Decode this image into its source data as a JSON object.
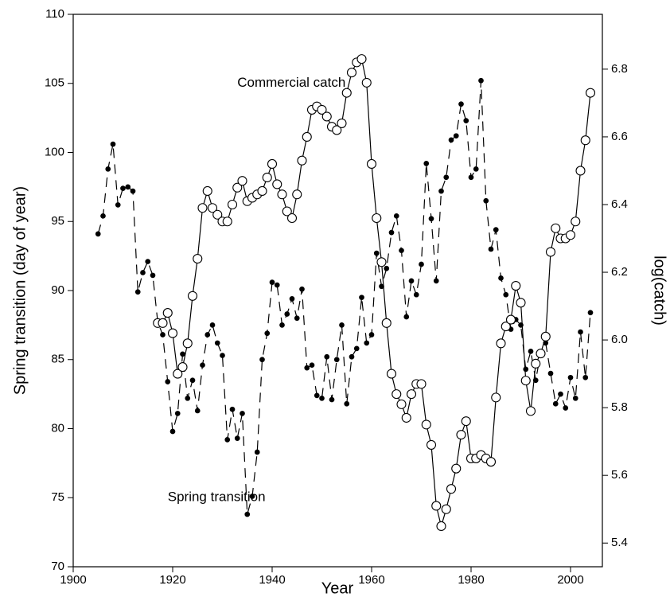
{
  "chart_data": {
    "type": "line",
    "xlabel": "Year",
    "ylabel": "Spring transition (day of year)",
    "y2label": "log(catch)",
    "xlim": [
      1900,
      2006.4
    ],
    "xticks": [
      1900,
      1920,
      1940,
      1960,
      1980,
      2000
    ],
    "ylim": [
      70,
      110
    ],
    "yticks": [
      70,
      75,
      80,
      85,
      90,
      95,
      100,
      105,
      110
    ],
    "y2lim": [
      5.33,
      6.962
    ],
    "y2ticks": [
      5.4,
      5.6,
      5.8,
      {
        "value": 6,
        "label": "6.0"
      },
      6.2,
      6.4,
      6.6,
      6.8
    ],
    "annotations": [
      {
        "text": "Commercial catch",
        "x": 1933,
        "y": 105
      },
      {
        "text": "Spring transition",
        "x": 1919,
        "y": 75
      }
    ],
    "series": [
      {
        "name": "Spring transition",
        "color": "#000",
        "style": "dashed",
        "marker": "dot",
        "x": [
          1905,
          1906,
          1907,
          1908,
          1909,
          1910,
          1911,
          1912,
          1913,
          1914,
          1915,
          1916,
          1917,
          1918,
          1919,
          1920,
          1921,
          1922,
          1923,
          1924,
          1925,
          1926,
          1927,
          1928,
          1929,
          1930,
          1931,
          1932,
          1933,
          1934,
          1935,
          1936,
          1937,
          1938,
          1939,
          1940,
          1941,
          1942,
          1943,
          1944,
          1945,
          1946,
          1947,
          1948,
          1949,
          1950,
          1951,
          1952,
          1953,
          1954,
          1955,
          1956,
          1957,
          1958,
          1959,
          1960,
          1961,
          1962,
          1963,
          1964,
          1965,
          1966,
          1967,
          1968,
          1969,
          1970,
          1971,
          1972,
          1973,
          1974,
          1975,
          1976,
          1977,
          1978,
          1979,
          1980,
          1981,
          1982,
          1983,
          1984,
          1985,
          1986,
          1987,
          1988,
          1989,
          1990,
          1991,
          1992,
          1993,
          1994,
          1995,
          1996,
          1997,
          1998,
          1999,
          2000,
          2001,
          2002,
          2003,
          2004
        ],
        "values": [
          94.1,
          95.4,
          98.8,
          100.6,
          96.2,
          97.4,
          97.5,
          97.2,
          89.9,
          91.3,
          92.1,
          91.1,
          87.7,
          86.8,
          83.4,
          79.8,
          81.1,
          85.4,
          82.2,
          83.5,
          81.3,
          84.6,
          86.8,
          87.5,
          86.2,
          85.3,
          79.2,
          81.4,
          79.3,
          81.1,
          73.8,
          75.1,
          78.3,
          85.0,
          86.9,
          90.6,
          90.4,
          87.5,
          88.3,
          89.4,
          88.0,
          90.1,
          84.4,
          84.6,
          82.4,
          82.2,
          85.2,
          82.1,
          85.0,
          87.5,
          81.8,
          85.2,
          85.8,
          89.5,
          86.2,
          86.8,
          92.7,
          90.3,
          91.6,
          94.2,
          95.4,
          92.9,
          88.1,
          90.7,
          89.7,
          91.9,
          99.2,
          95.2,
          90.7,
          97.2,
          98.2,
          100.9,
          101.2,
          103.5,
          102.3,
          98.2,
          98.8,
          105.2,
          96.5,
          93.0,
          94.4,
          90.9,
          89.7,
          87.2,
          87.9,
          87.5,
          84.3,
          85.6,
          83.5,
          85.5,
          86.2,
          84.0,
          81.8,
          82.5,
          81.5,
          83.7,
          82.2,
          87.0,
          83.7,
          88.4
        ]
      },
      {
        "name": "Commercial catch",
        "color": "#000",
        "style": "solid",
        "marker": "circle",
        "axis": "y2",
        "x": [
          1917,
          1918,
          1919,
          1920,
          1921,
          1922,
          1923,
          1924,
          1925,
          1926,
          1927,
          1928,
          1929,
          1930,
          1931,
          1932,
          1933,
          1934,
          1935,
          1936,
          1937,
          1938,
          1939,
          1940,
          1941,
          1942,
          1943,
          1944,
          1945,
          1946,
          1947,
          1948,
          1949,
          1950,
          1951,
          1952,
          1953,
          1954,
          1955,
          1956,
          1957,
          1958,
          1959,
          1960,
          1961,
          1962,
          1963,
          1964,
          1965,
          1966,
          1967,
          1968,
          1969,
          1970,
          1971,
          1972,
          1973,
          1974,
          1975,
          1976,
          1977,
          1978,
          1979,
          1980,
          1981,
          1982,
          1983,
          1984,
          1985,
          1986,
          1987,
          1988,
          1989,
          1990,
          1991,
          1992,
          1993,
          1994,
          1995,
          1996,
          1997,
          1998,
          1999,
          2000,
          2001,
          2002,
          2003,
          2004
        ],
        "values": [
          6.05,
          6.05,
          6.08,
          6.02,
          5.9,
          5.92,
          5.99,
          6.13,
          6.24,
          6.39,
          6.44,
          6.39,
          6.37,
          6.35,
          6.35,
          6.4,
          6.45,
          6.47,
          6.41,
          6.42,
          6.43,
          6.44,
          6.48,
          6.52,
          6.46,
          6.43,
          6.38,
          6.36,
          6.43,
          6.53,
          6.6,
          6.68,
          6.69,
          6.68,
          6.66,
          6.63,
          6.62,
          6.64,
          6.73,
          6.79,
          6.82,
          6.83,
          6.76,
          6.52,
          6.36,
          6.23,
          6.05,
          5.9,
          5.84,
          5.81,
          5.77,
          5.84,
          5.87,
          5.87,
          5.75,
          5.69,
          5.51,
          5.45,
          5.5,
          5.56,
          5.62,
          5.72,
          5.76,
          5.65,
          5.65,
          5.66,
          5.65,
          5.64,
          5.83,
          5.99,
          6.04,
          6.06,
          6.16,
          6.11,
          5.88,
          5.79,
          5.93,
          5.96,
          6.01,
          6.26,
          6.33,
          6.3,
          6.3,
          6.31,
          6.35,
          6.5,
          6.59,
          6.73
        ]
      }
    ]
  }
}
